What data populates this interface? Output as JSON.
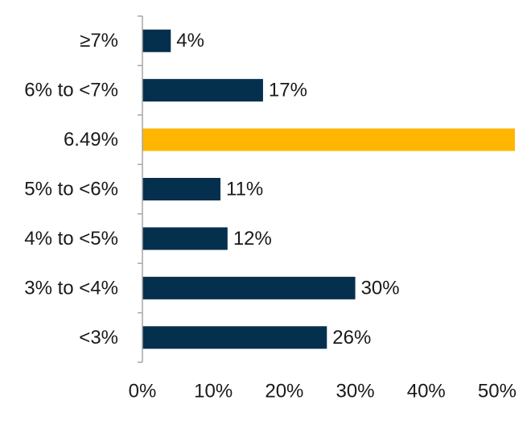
{
  "chart_data": {
    "type": "bar",
    "orientation": "horizontal",
    "title": "",
    "xlabel": "",
    "ylabel": "",
    "categories": [
      "≥7%",
      "6% to <7%",
      "6.49%",
      "5% to <6%",
      "4% to <5%",
      "3% to <4%",
      "<3%"
    ],
    "values": [
      4,
      17,
      52.5,
      11,
      12,
      30,
      26
    ],
    "data_labels": [
      "4%",
      "17%",
      "",
      "11%",
      "12%",
      "30%",
      "26%"
    ],
    "highlight_index": 2,
    "xlim": [
      0,
      52.5
    ],
    "xticks": [
      0,
      10,
      20,
      30,
      40,
      50
    ],
    "xtick_labels": [
      "0%",
      "10%",
      "20%",
      "30%",
      "40%",
      "50%"
    ],
    "grid": false,
    "legend": "none",
    "colors": {
      "bar": "#05304d",
      "highlight": "#ffb600",
      "axis": "#a6a6a6",
      "text": "#1a1a1a"
    }
  }
}
